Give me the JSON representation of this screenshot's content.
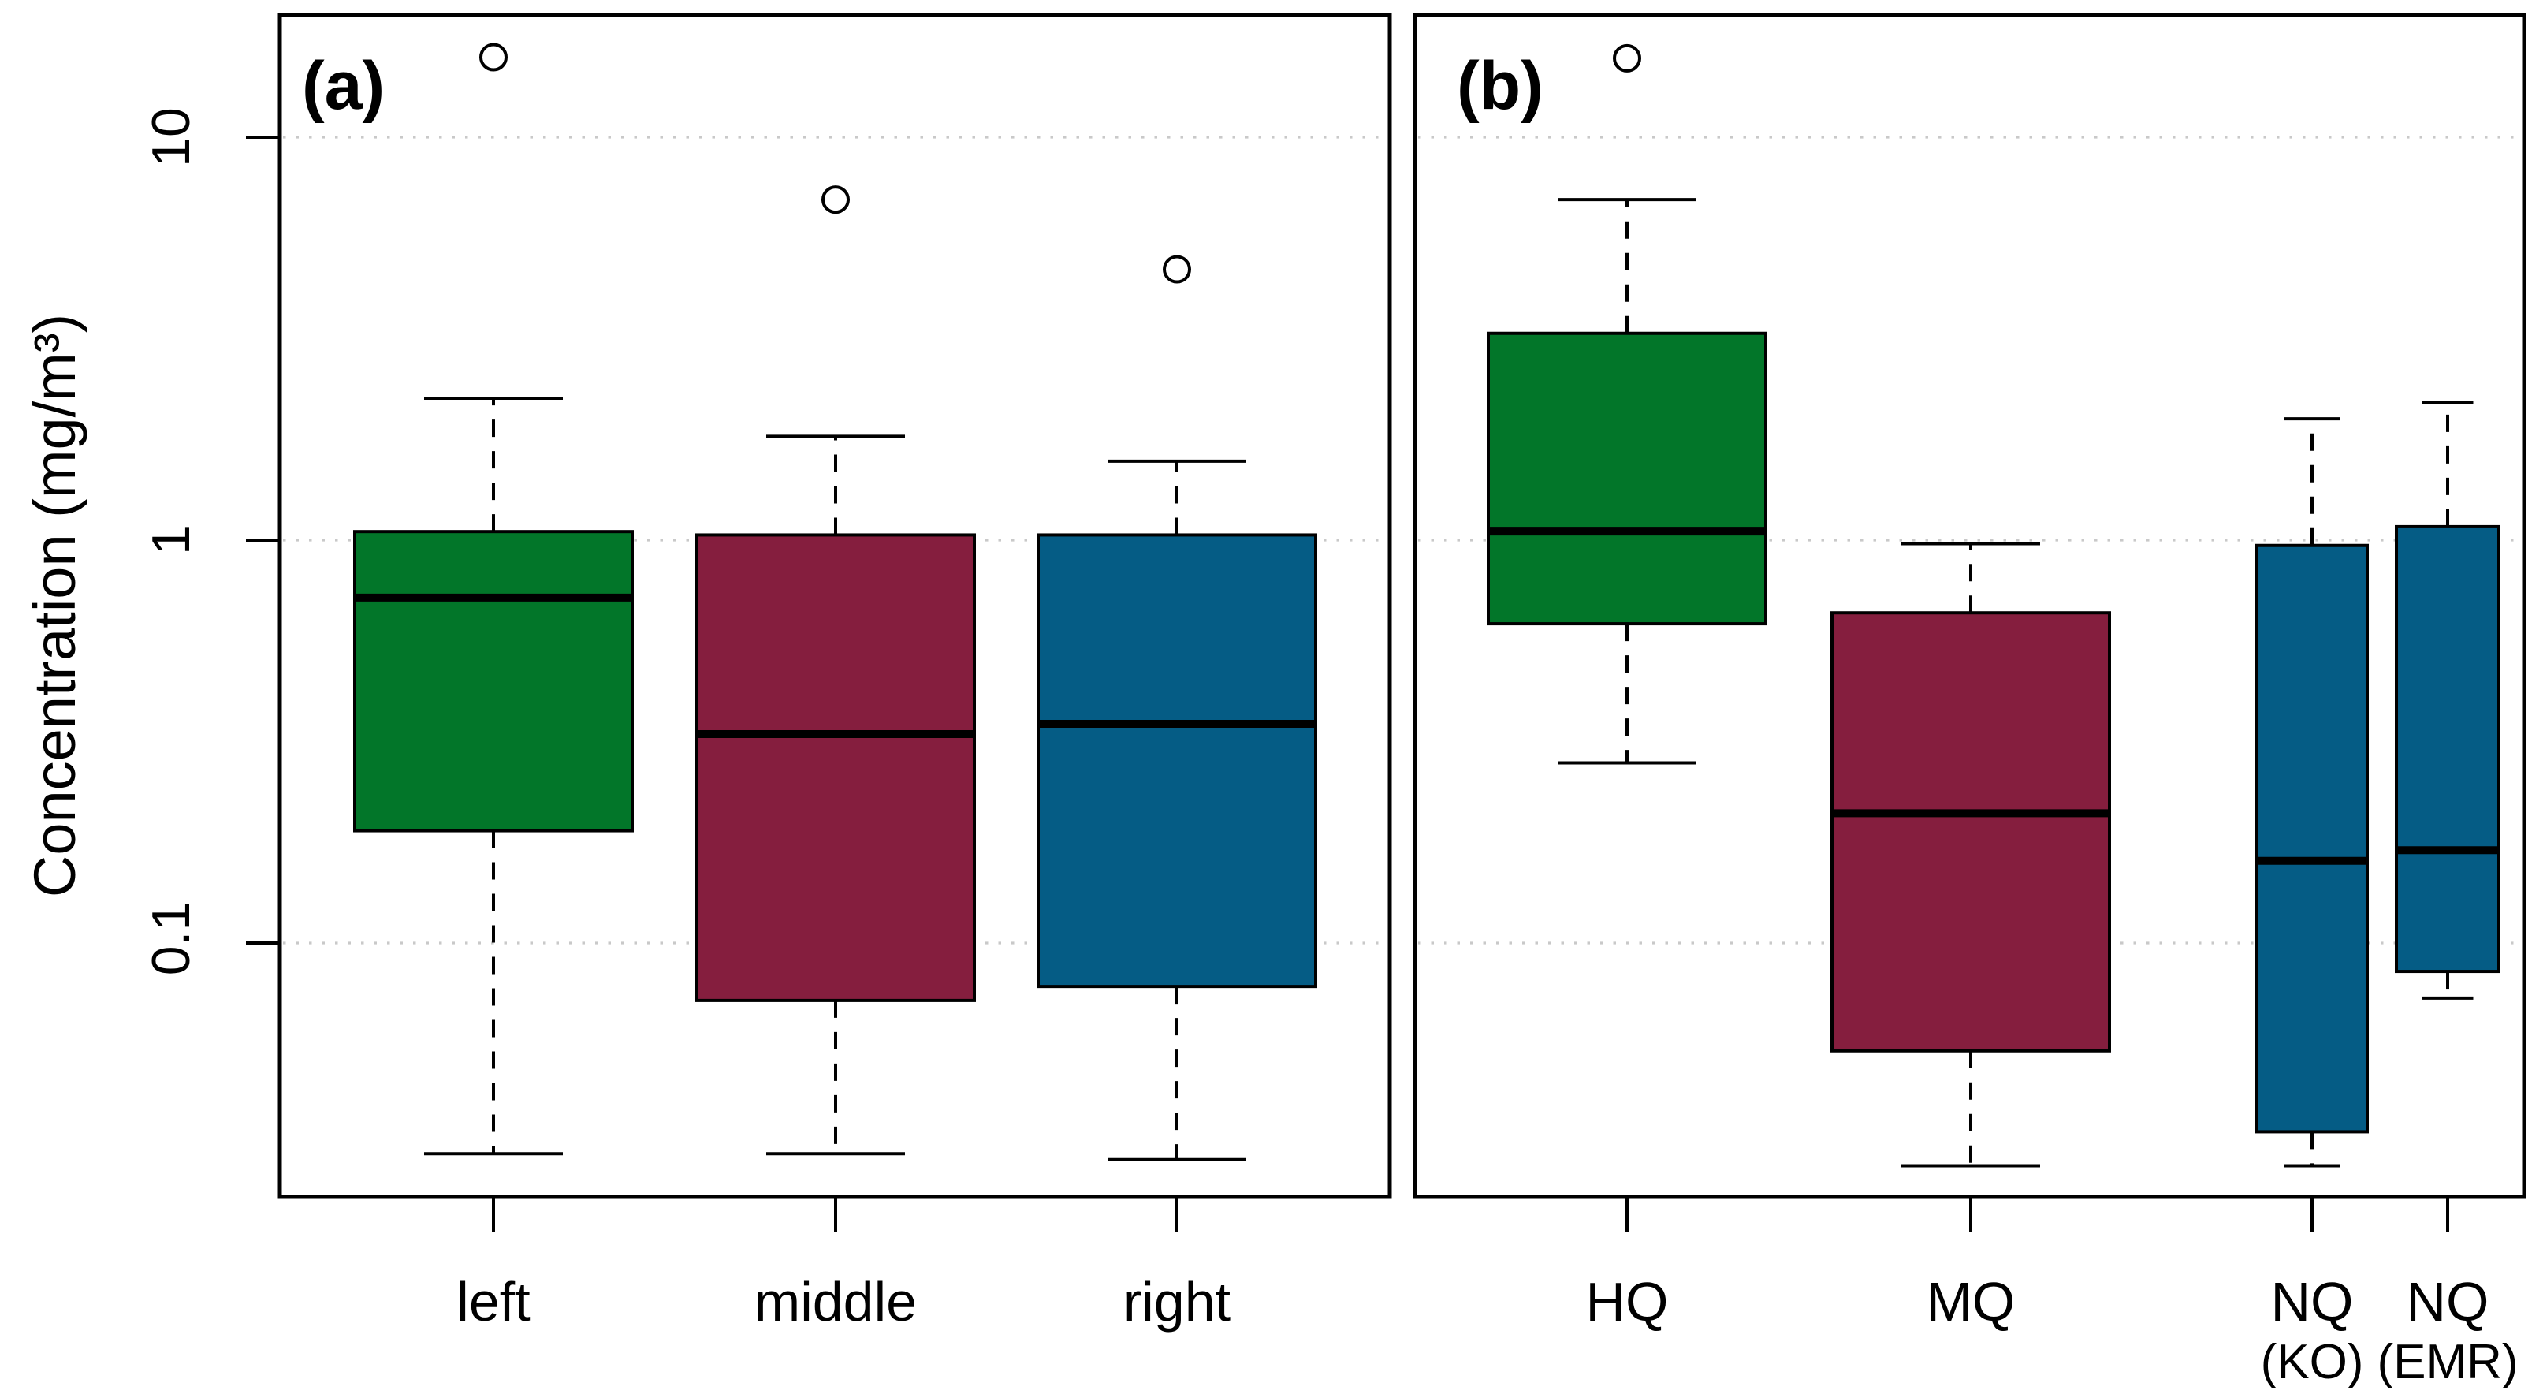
{
  "figure": {
    "background": "#ffffff",
    "frame_color": "#000000",
    "gridline_color": "#c9c9c9"
  },
  "chart_data": {
    "type": "boxplot",
    "log_scale_y": true,
    "title": "",
    "xlabel": "",
    "ylabel": "Concentration (mg/m³)",
    "ylim": [
      0.02,
      20
    ],
    "yticks": [
      10,
      1,
      0.1
    ],
    "ytick_labels": [
      "10",
      "1",
      "0.1"
    ],
    "grid": "dotted horizontal lines at 0.1, 1 and 10",
    "legend": "none",
    "panels": [
      {
        "label": "(a)",
        "categories": [
          "left",
          "middle",
          "right"
        ],
        "boxes": [
          {
            "label": "left",
            "color": "#027629",
            "low": 0.03,
            "q1": 0.19,
            "median": 0.72,
            "q3": 1.05,
            "high": 2.25,
            "outliers": [
              15.8
            ]
          },
          {
            "label": "middle",
            "color": "#851E3E",
            "low": 0.03,
            "q1": 0.072,
            "median": 0.33,
            "q3": 1.03,
            "high": 1.81,
            "outliers": [
              7.0
            ]
          },
          {
            "label": "right",
            "color": "#055C85",
            "low": 0.029,
            "q1": 0.078,
            "median": 0.35,
            "q3": 1.03,
            "high": 1.57,
            "outliers": [
              4.7
            ]
          }
        ]
      },
      {
        "label": "(b)",
        "categories": [
          "HQ",
          "MQ",
          "NQ (KO)",
          "NQ (EMR)"
        ],
        "boxes": [
          {
            "label": "HQ",
            "sublabel": "",
            "color": "#027629",
            "low": 0.28,
            "q1": 0.62,
            "median": 1.05,
            "q3": 3.26,
            "high": 7.0,
            "outliers": [
              15.7
            ]
          },
          {
            "label": "MQ",
            "sublabel": "",
            "color": "#851E3E",
            "low": 0.028,
            "q1": 0.054,
            "median": 0.21,
            "q3": 0.66,
            "high": 0.98,
            "outliers": []
          },
          {
            "label": "NQ",
            "sublabel": "(KO)",
            "color": "#055C85",
            "low": 0.028,
            "q1": 0.034,
            "median": 0.16,
            "q3": 0.97,
            "high": 2.0,
            "outliers": []
          },
          {
            "label": "NQ",
            "sublabel": "(EMR)",
            "color": "#055C85",
            "low": 0.073,
            "q1": 0.085,
            "median": 0.17,
            "q3": 1.08,
            "high": 2.2,
            "outliers": []
          }
        ]
      }
    ]
  }
}
